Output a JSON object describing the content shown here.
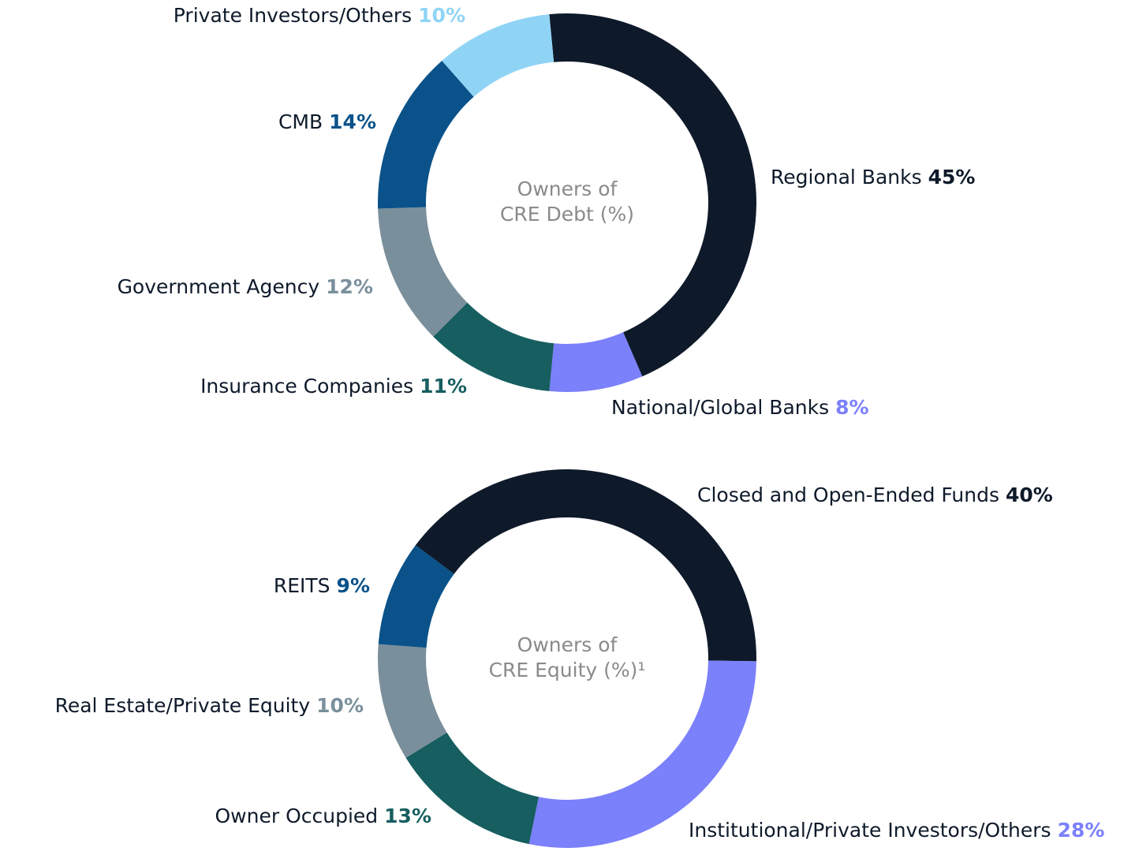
{
  "chart_data": [
    {
      "type": "pie",
      "center_text": [
        "Owners of",
        "CRE Debt (%)"
      ],
      "categories": [
        "Regional Banks",
        "National/Global Banks",
        "Insurance Companies",
        "Government Agency",
        "CMB",
        "Private Investors/Others"
      ],
      "values": [
        45,
        8,
        11,
        12,
        14,
        10
      ],
      "value_labels": [
        "45%",
        "8%",
        "11%",
        "12%",
        "14%",
        "10%"
      ],
      "colors": [
        "#0e1a2a",
        "#7b80fb",
        "#175e60",
        "#7a8f9c",
        "#0a5289",
        "#8fd4f5"
      ]
    },
    {
      "type": "pie",
      "center_text": [
        "Owners of",
        "CRE Equity (%)¹"
      ],
      "categories": [
        "Closed and Open-Ended Funds",
        "Institutional/Private Investors/Others",
        "Owner Occupied",
        "Real Estate/Private Equity",
        "REITS"
      ],
      "values": [
        40,
        28,
        13,
        10,
        9
      ],
      "value_labels": [
        "40%",
        "28%",
        "13%",
        "10%",
        "9%"
      ],
      "colors": [
        "#0e1a2a",
        "#7b80fb",
        "#175e60",
        "#7a8f9c",
        "#0a5289"
      ]
    }
  ]
}
